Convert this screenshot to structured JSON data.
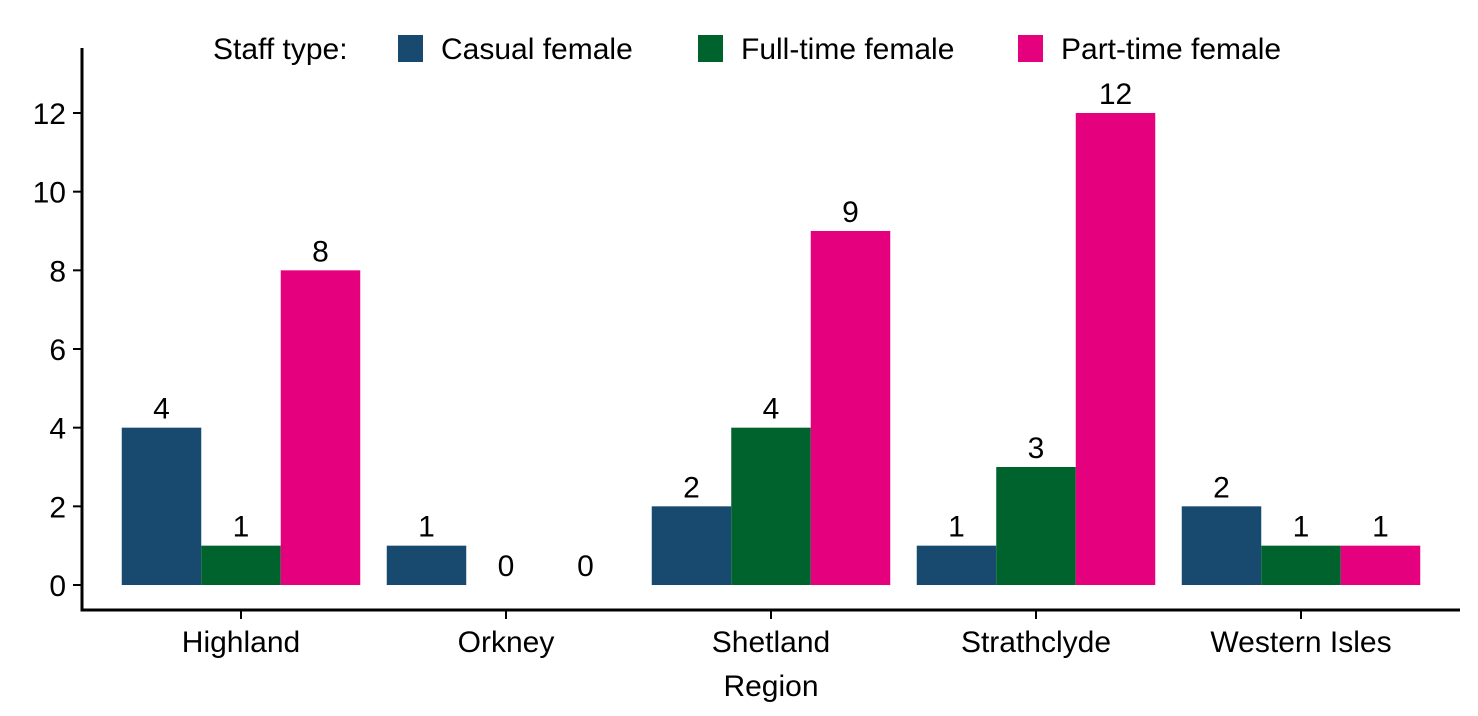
{
  "chart_data": {
    "type": "bar",
    "categories": [
      "Highland",
      "Orkney",
      "Shetland",
      "Strathclyde",
      "Western Isles"
    ],
    "series": [
      {
        "name": "Casual female",
        "color": "#174A6E",
        "values": [
          4,
          1,
          2,
          1,
          2
        ]
      },
      {
        "name": "Full-time female",
        "color": "#00622C",
        "values": [
          1,
          0,
          4,
          3,
          1
        ]
      },
      {
        "name": "Part-time female",
        "color": "#E5007E",
        "values": [
          8,
          0,
          9,
          12,
          1
        ]
      }
    ],
    "legend_title": "Staff type:",
    "legend_position": "top",
    "xlabel": "Region",
    "ylabel": "",
    "ylim": [
      0,
      12
    ],
    "yticks": [
      0,
      2,
      4,
      6,
      8,
      10,
      12
    ],
    "grid": false,
    "data_labels": true
  }
}
